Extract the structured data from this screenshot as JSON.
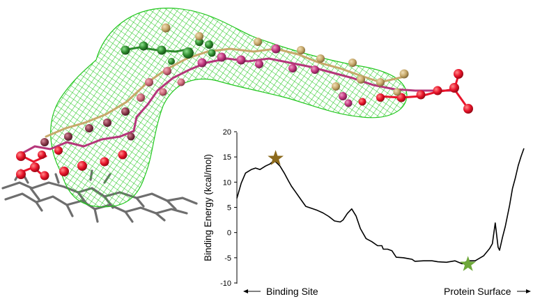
{
  "illustration": {
    "mesh_color": "#22c71e",
    "ligand_colors": [
      "#e8142a",
      "#b5367a",
      "#cc3d8c",
      "#2e8b2e",
      "#c7a96b",
      "#8a3a4c"
    ],
    "heme_color": "#6e6e6e"
  },
  "chart_data": {
    "type": "line",
    "title": "",
    "xlabel": "",
    "ylabel": "Binding Energy (kcal/mol)",
    "ylim": [
      -10,
      20
    ],
    "yticks": [
      "20",
      "15",
      "10",
      "5",
      "0",
      "-5",
      "-10"
    ],
    "xlim": [
      0,
      100
    ],
    "line_color": "#000000",
    "series": [
      {
        "x": [
          0,
          1.5,
          3,
          5,
          6.5,
          8,
          10,
          11.5,
          13,
          15,
          16.5,
          18,
          19,
          20.5,
          22,
          24,
          26,
          28,
          30,
          32,
          34,
          36,
          37,
          38.5,
          40,
          41.5,
          43,
          45,
          47,
          49,
          50.5,
          51,
          52.5,
          54,
          55.5,
          58,
          60,
          61,
          62,
          65,
          68,
          70,
          73,
          76,
          78.5,
          80.5,
          83,
          86,
          88,
          89,
          90,
          91,
          91.5,
          92,
          92.5,
          93.5,
          95,
          96,
          97,
          98,
          99,
          100
        ],
        "y": [
          6.8,
          9.8,
          11.8,
          12.5,
          12.8,
          12.5,
          13.2,
          13.6,
          14.3,
          13.2,
          11.8,
          10.2,
          9.2,
          8.0,
          6.8,
          5.2,
          4.8,
          4.4,
          3.9,
          3.2,
          2.3,
          2.1,
          2.5,
          3.8,
          4.7,
          3.3,
          0.8,
          -1.2,
          -1.8,
          -2.6,
          -2.6,
          -3.3,
          -3.3,
          -3.6,
          -4.9,
          -5.0,
          -5.2,
          -5.3,
          -5.7,
          -5.6,
          -5.6,
          -5.8,
          -5.9,
          -5.6,
          -6.2,
          -5.6,
          -5.6,
          -4.6,
          -3.2,
          -2.2,
          1.9,
          -2.9,
          -3.5,
          -2.3,
          -1.0,
          1.2,
          5.4,
          8.7,
          10.8,
          13.3,
          15.1,
          16.7
        ]
      }
    ],
    "markers": [
      {
        "x": 13.5,
        "y": 14.7,
        "color": "#8c6a1c"
      },
      {
        "x": 80.5,
        "y": -6.3,
        "color": "#6ea83a"
      }
    ],
    "bottom_labels": {
      "left": "Binding Site",
      "right": "Protein Surface"
    }
  }
}
